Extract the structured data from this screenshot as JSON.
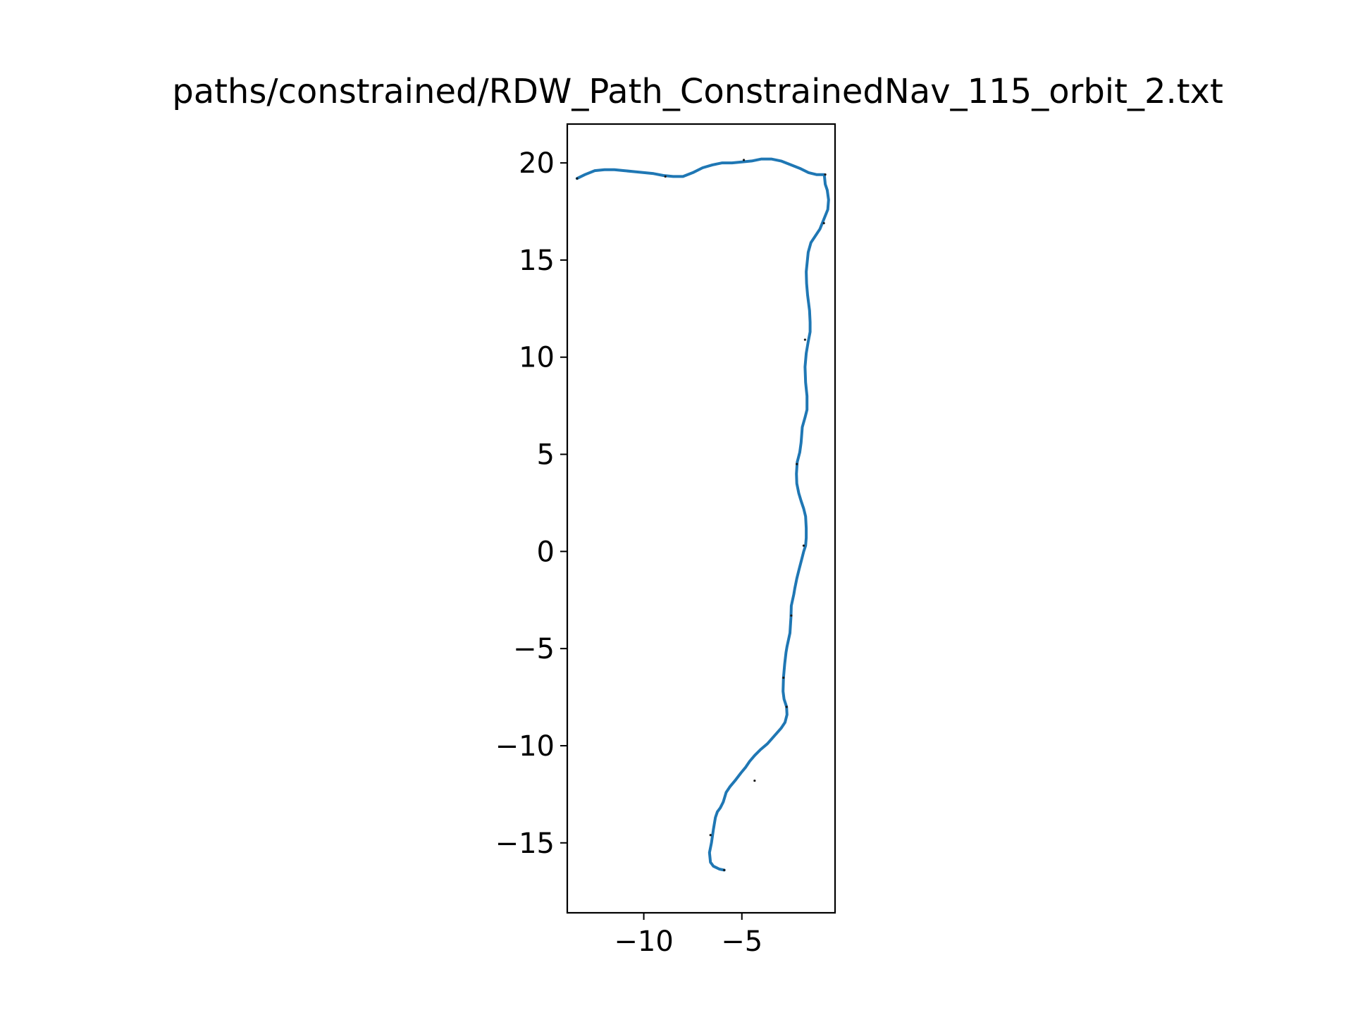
{
  "chart_data": {
    "type": "line",
    "title": "paths/constrained/RDW_Path_ConstrainedNav_115_orbit_2.txt",
    "xlabel": "",
    "ylabel": "",
    "xlim": [
      -13.9,
      -0.25
    ],
    "ylim": [
      -18.6,
      22.0
    ],
    "aspect": "equal",
    "grid": false,
    "legend": "none",
    "colors": {
      "series": "#1f77b4",
      "marker": "#1a1a1a"
    },
    "x_ticks": [
      {
        "value": -10,
        "label": "−10"
      },
      {
        "value": -5,
        "label": "−5"
      }
    ],
    "y_ticks": [
      {
        "value": 20,
        "label": "20"
      },
      {
        "value": 15,
        "label": "15"
      },
      {
        "value": 10,
        "label": "10"
      },
      {
        "value": 5,
        "label": "5"
      },
      {
        "value": 0,
        "label": "0"
      },
      {
        "value": -5,
        "label": "−5"
      },
      {
        "value": -10,
        "label": "−10"
      },
      {
        "value": -15,
        "label": "−15"
      }
    ],
    "series": [
      {
        "x": [
          -5.9,
          -6.15,
          -6.45,
          -6.6,
          -6.65,
          -6.55,
          -6.45,
          -6.35,
          -6.25,
          -6.1,
          -5.95,
          -5.8,
          -5.6,
          -5.35,
          -5.05,
          -4.8,
          -4.6,
          -4.35,
          -4.05,
          -3.7,
          -3.35,
          -3.0,
          -2.8,
          -2.7,
          -2.72,
          -2.85,
          -2.9,
          -2.88,
          -2.82,
          -2.75,
          -2.7,
          -2.55,
          -2.5,
          -2.48,
          -2.35,
          -2.3,
          -2.2,
          -2.08,
          -1.95,
          -1.85,
          -1.75,
          -1.72,
          -1.72,
          -1.75,
          -1.85,
          -1.98,
          -2.1,
          -2.2,
          -2.22,
          -2.18,
          -2.05,
          -1.98,
          -1.92,
          -1.78,
          -1.68,
          -1.68,
          -1.75,
          -1.78,
          -1.72,
          -1.62,
          -1.52,
          -1.52,
          -1.55,
          -1.65,
          -1.7,
          -1.72,
          -1.62,
          -1.48,
          -1.28,
          -1.02,
          -0.82,
          -0.62,
          -0.58,
          -0.65,
          -0.75,
          -0.8,
          -1.2,
          -1.6,
          -2.0,
          -2.5,
          -3.0,
          -3.5,
          -4.0,
          -4.5,
          -5.0,
          -5.5,
          -6.0,
          -6.5,
          -7.0,
          -7.5,
          -8.0,
          -8.5,
          -9.0,
          -9.5,
          -10.0,
          -10.5,
          -11.0,
          -11.5,
          -12.0,
          -12.5,
          -13.0,
          -13.4
        ],
        "y": [
          -16.4,
          -16.35,
          -16.2,
          -16.0,
          -15.5,
          -15.0,
          -14.3,
          -13.7,
          -13.4,
          -13.2,
          -12.9,
          -12.4,
          -12.1,
          -11.8,
          -11.4,
          -11.1,
          -10.8,
          -10.5,
          -10.2,
          -9.9,
          -9.5,
          -9.1,
          -8.8,
          -8.4,
          -8.0,
          -7.6,
          -7.2,
          -6.5,
          -5.8,
          -5.2,
          -4.9,
          -4.2,
          -3.4,
          -2.8,
          -2.2,
          -1.9,
          -1.4,
          -0.9,
          -0.4,
          0.0,
          0.3,
          0.7,
          1.2,
          1.8,
          2.2,
          2.6,
          3.0,
          3.5,
          4.0,
          4.6,
          5.1,
          5.6,
          6.4,
          6.9,
          7.3,
          8.0,
          8.7,
          9.5,
          10.2,
          10.8,
          11.3,
          11.8,
          12.4,
          13.2,
          13.8,
          14.4,
          15.4,
          15.9,
          16.2,
          16.6,
          17.1,
          17.6,
          18.1,
          18.6,
          18.9,
          19.4,
          19.4,
          19.5,
          19.7,
          19.9,
          20.1,
          20.2,
          20.2,
          20.1,
          20.05,
          20.0,
          20.0,
          19.9,
          19.75,
          19.5,
          19.3,
          19.3,
          19.35,
          19.45,
          19.5,
          19.55,
          19.6,
          19.65,
          19.65,
          19.6,
          19.4,
          19.2
        ]
      }
    ],
    "waypoints": [
      {
        "x": -5.9,
        "y": -16.4
      },
      {
        "x": -6.6,
        "y": -14.6
      },
      {
        "x": -4.35,
        "y": -11.8
      },
      {
        "x": -2.72,
        "y": -8.0
      },
      {
        "x": -2.88,
        "y": -6.5
      },
      {
        "x": -2.48,
        "y": -3.3
      },
      {
        "x": -1.85,
        "y": 0.3
      },
      {
        "x": -2.2,
        "y": 4.5
      },
      {
        "x": -1.78,
        "y": 10.9
      },
      {
        "x": -0.82,
        "y": 16.9
      },
      {
        "x": -0.75,
        "y": 19.4
      },
      {
        "x": -4.9,
        "y": 20.15
      },
      {
        "x": -8.9,
        "y": 19.3
      },
      {
        "x": -13.4,
        "y": 19.2
      }
    ]
  }
}
